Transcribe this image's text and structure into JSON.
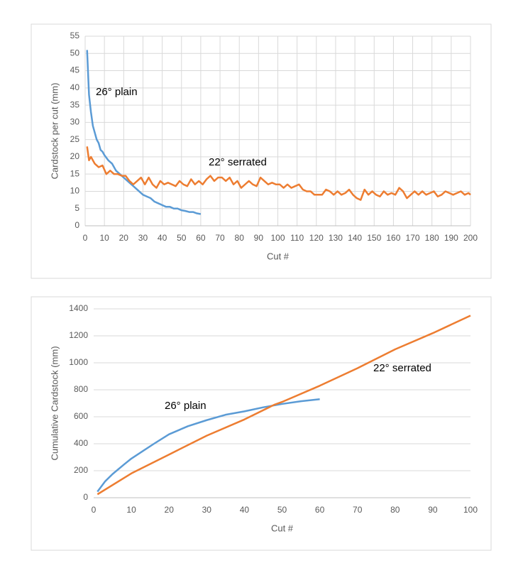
{
  "chart_data": [
    {
      "type": "line",
      "x_label": "Cut #",
      "y_label": "Cardstock per cut (mm)",
      "xlim": [
        0,
        200
      ],
      "xticks": [
        0,
        10,
        20,
        30,
        40,
        50,
        60,
        70,
        80,
        90,
        100,
        110,
        120,
        130,
        140,
        150,
        160,
        170,
        180,
        190,
        200
      ],
      "ylim": [
        0,
        55
      ],
      "yticks": [
        0,
        5,
        10,
        15,
        20,
        25,
        30,
        35,
        40,
        45,
        50,
        55
      ],
      "xgrid": true,
      "ygrid": true,
      "series": [
        {
          "name": "26° plain",
          "color": "#5b9bd5",
          "x": [
            1,
            2,
            3,
            4,
            5,
            6,
            7,
            8,
            9,
            10,
            12,
            14,
            16,
            18,
            20,
            22,
            24,
            26,
            28,
            30,
            32,
            34,
            36,
            38,
            40,
            42,
            44,
            46,
            48,
            50,
            52,
            54,
            56,
            58,
            60
          ],
          "values": [
            51,
            38,
            33,
            29,
            27,
            25,
            24,
            22,
            21.5,
            20.5,
            19,
            18,
            16,
            15,
            14,
            13,
            12,
            11,
            10,
            9,
            8.5,
            8,
            7,
            6.5,
            6,
            5.5,
            5.5,
            5,
            5,
            4.5,
            4.3,
            4,
            4,
            3.6,
            3.4
          ]
        },
        {
          "name": "22° serrated",
          "color": "#ed7d31",
          "x": [
            1,
            2,
            3,
            5,
            7,
            9,
            11,
            13,
            15,
            17,
            19,
            21,
            23,
            25,
            27,
            29,
            31,
            33,
            35,
            37,
            39,
            41,
            43,
            45,
            47,
            49,
            51,
            53,
            55,
            57,
            59,
            61,
            63,
            65,
            67,
            69,
            71,
            73,
            75,
            77,
            79,
            81,
            83,
            85,
            87,
            89,
            91,
            93,
            95,
            97,
            99,
            101,
            103,
            105,
            107,
            109,
            111,
            113,
            115,
            117,
            119,
            121,
            123,
            125,
            127,
            129,
            131,
            133,
            135,
            137,
            139,
            141,
            143,
            145,
            147,
            149,
            151,
            153,
            155,
            157,
            159,
            161,
            163,
            165,
            167,
            169,
            171,
            173,
            175,
            177,
            179,
            181,
            183,
            185,
            187,
            189,
            191,
            193,
            195,
            197,
            199,
            200
          ],
          "values": [
            23,
            19,
            20,
            18,
            17,
            17.5,
            15,
            16,
            15,
            15,
            14.5,
            14.5,
            13,
            12,
            13,
            14,
            12,
            14,
            12,
            11,
            13,
            12,
            12.5,
            12,
            11.5,
            13,
            12,
            11.5,
            13.5,
            12,
            13,
            12,
            13.5,
            14.5,
            13,
            14,
            14,
            13,
            14,
            12,
            13,
            11,
            12,
            13,
            12,
            11.5,
            14,
            13,
            12,
            12.5,
            12,
            12,
            11,
            12,
            11,
            11.5,
            12,
            10.5,
            10,
            10,
            9,
            9,
            9,
            10.5,
            10,
            9,
            10,
            9,
            9.5,
            10.5,
            9,
            8,
            7.5,
            10.5,
            9,
            10,
            9,
            8.5,
            10,
            9,
            9.5,
            9,
            11,
            10,
            8,
            9,
            10,
            9,
            10,
            9,
            9.5,
            10,
            8.5,
            9,
            10,
            9.5,
            9,
            9.5,
            10,
            9,
            9.5,
            9
          ]
        }
      ]
    },
    {
      "type": "line",
      "x_label": "Cut #",
      "y_label": "Cumulative Cardstock (mm)",
      "xlim": [
        0,
        100
      ],
      "xticks": [
        0,
        10,
        20,
        30,
        40,
        50,
        60,
        70,
        80,
        90,
        100
      ],
      "ylim": [
        0,
        1400
      ],
      "yticks": [
        0,
        200,
        400,
        600,
        800,
        1000,
        1200,
        1400
      ],
      "xgrid": false,
      "ygrid": true,
      "series": [
        {
          "name": "26° plain",
          "color": "#5b9bd5",
          "x": [
            1,
            3,
            5,
            8,
            10,
            13,
            16,
            20,
            25,
            30,
            35,
            40,
            45,
            50,
            55,
            60
          ],
          "values": [
            45,
            120,
            175,
            245,
            290,
            345,
            400,
            470,
            530,
            575,
            615,
            640,
            670,
            695,
            715,
            730
          ]
        },
        {
          "name": "22° serrated",
          "color": "#ed7d31",
          "x": [
            1,
            10,
            20,
            30,
            40,
            48,
            50,
            60,
            70,
            80,
            90,
            100
          ],
          "values": [
            25,
            180,
            320,
            460,
            580,
            690,
            710,
            830,
            960,
            1100,
            1220,
            1350
          ]
        }
      ]
    }
  ]
}
